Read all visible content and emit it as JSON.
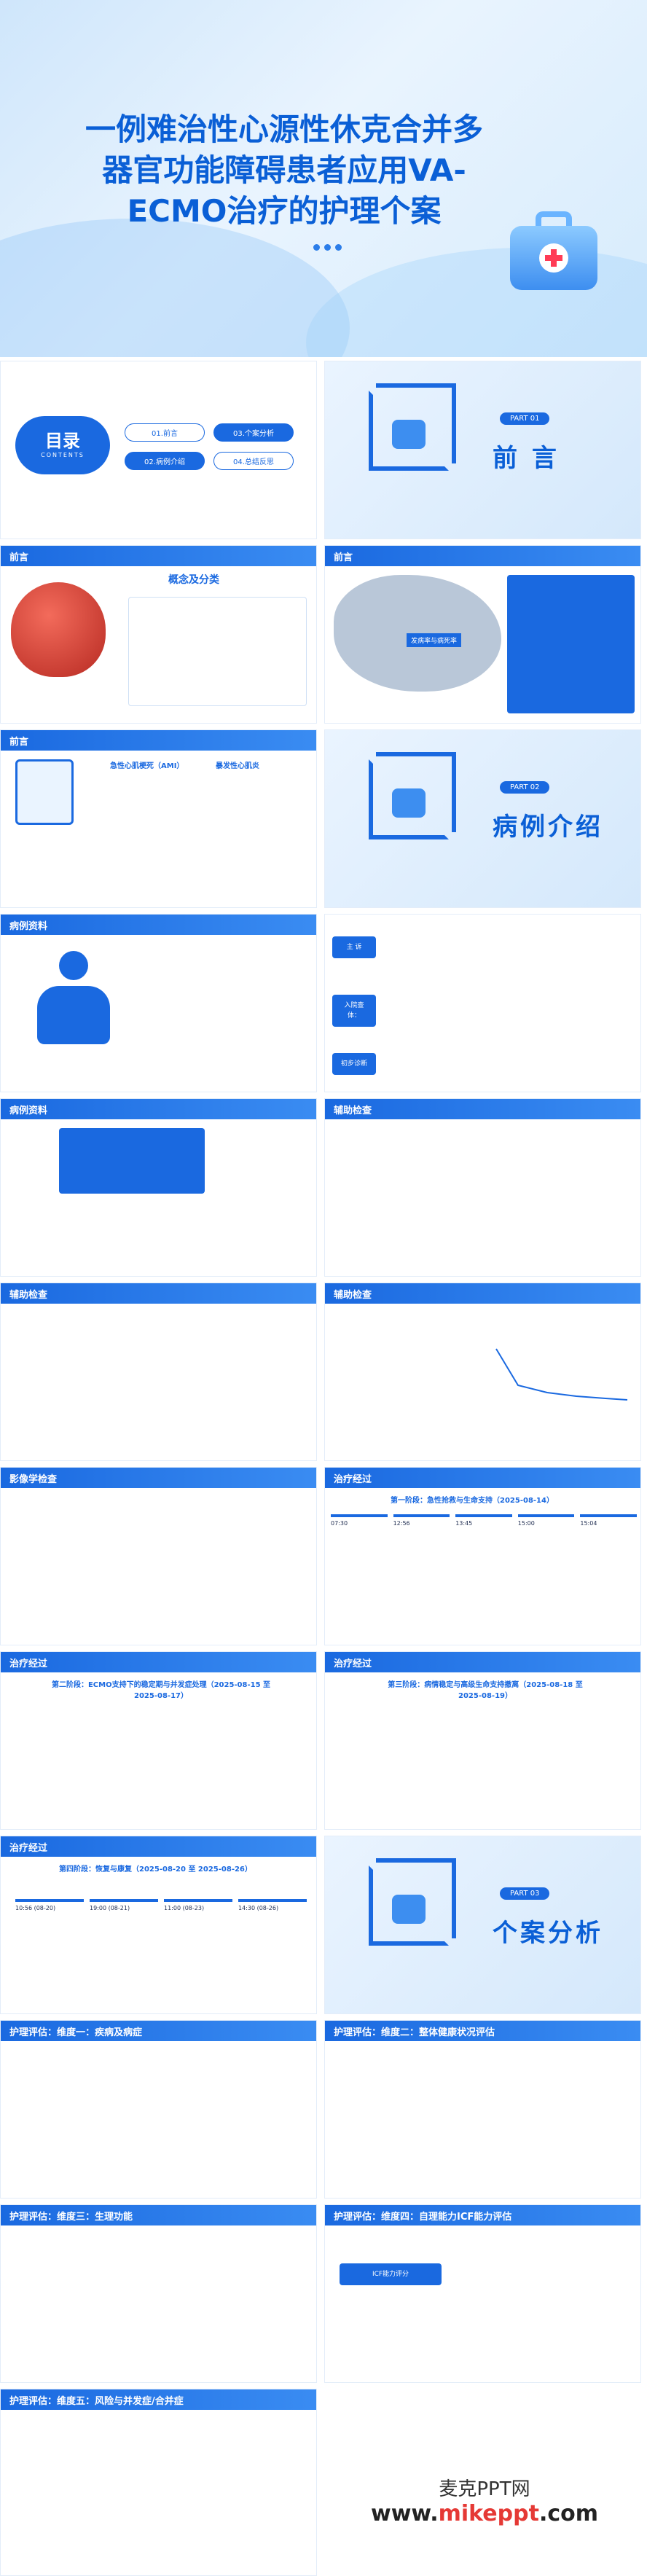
{
  "cover": {
    "title_line1": "一例难治性心源性休克合并多",
    "title_line2": "器官功能障碍患者应用VA-",
    "title_line3": "ECMO治疗的护理个案"
  },
  "toc": {
    "title": "目录",
    "subtitle": "CONTENTS",
    "items": [
      "01.前言",
      "03.个案分析",
      "02.病例介绍",
      "04.总结反思"
    ]
  },
  "part01": {
    "tag": "PART 01",
    "title": "前 言"
  },
  "part02": {
    "tag": "PART 02",
    "title": "病例介绍"
  },
  "part03": {
    "tag": "PART 03",
    "title": "个案分析"
  },
  "slides": {
    "foreword1": {
      "header": "前言",
      "subtitle": "概念及分类"
    },
    "foreword2": {
      "header": "前言",
      "map_label": "发病率与病死率"
    },
    "foreword3": {
      "header": "前言",
      "label_a": "急性心肌梗死（AMI）",
      "label_b": "暴发性心肌炎"
    },
    "case1": {
      "header": "病例资料"
    },
    "case2": {
      "header": "病例资料",
      "tag_a": "主 诉",
      "tag_b": "入院查体：",
      "tag_c": "初步诊断"
    },
    "case3": {
      "header": "病例资料"
    },
    "aux1": {
      "header": "辅助检查"
    },
    "aux2": {
      "header": "辅助检查"
    },
    "aux3": {
      "header": "辅助检查"
    },
    "imaging": {
      "header": "影像学检查"
    },
    "course1": {
      "header": "治疗经过",
      "stage": "第一阶段：急性抢救与生命支持（2025-08-14）",
      "times": [
        "07:30",
        "12:56",
        "13:45",
        "15:00",
        "15:04"
      ]
    },
    "course2": {
      "header": "治疗经过",
      "stage": "第二阶段：ECMO支持下的稳定期与并发症处理（2025-08-15 至 2025-08-17）"
    },
    "course3": {
      "header": "治疗经过",
      "stage": "第三阶段：病情稳定与高级生命支持撤离（2025-08-18 至 2025-08-19）"
    },
    "course4": {
      "header": "治疗经过",
      "stage": "第四阶段：恢复与康复（2025-08-20 至 2025-08-26）",
      "times": [
        "10:56 (08-20)",
        "19:00 (08-21)",
        "11:00 (08-23)",
        "14:30 (08-26)"
      ]
    },
    "eval1": {
      "header": "护理评估：维度一：疾病及病症"
    },
    "eval2": {
      "header": "护理评估：维度二：整体健康状况评估"
    },
    "eval3": {
      "header": "护理评估：维度三：生理功能"
    },
    "eval4": {
      "header": "护理评估：维度四：自理能力ICF能力评估",
      "label": "ICF能力评分"
    },
    "eval5": {
      "header": "护理评估：维度五：风险与并发症/合并症"
    }
  },
  "watermark": {
    "site_cn": "麦克PPT网",
    "site_url_prefix": "www.",
    "site_url_mid": "mikeppt",
    "site_url_suffix": ".com"
  },
  "colors": {
    "primary": "#1a69e0",
    "title": "#0a5fd6"
  }
}
